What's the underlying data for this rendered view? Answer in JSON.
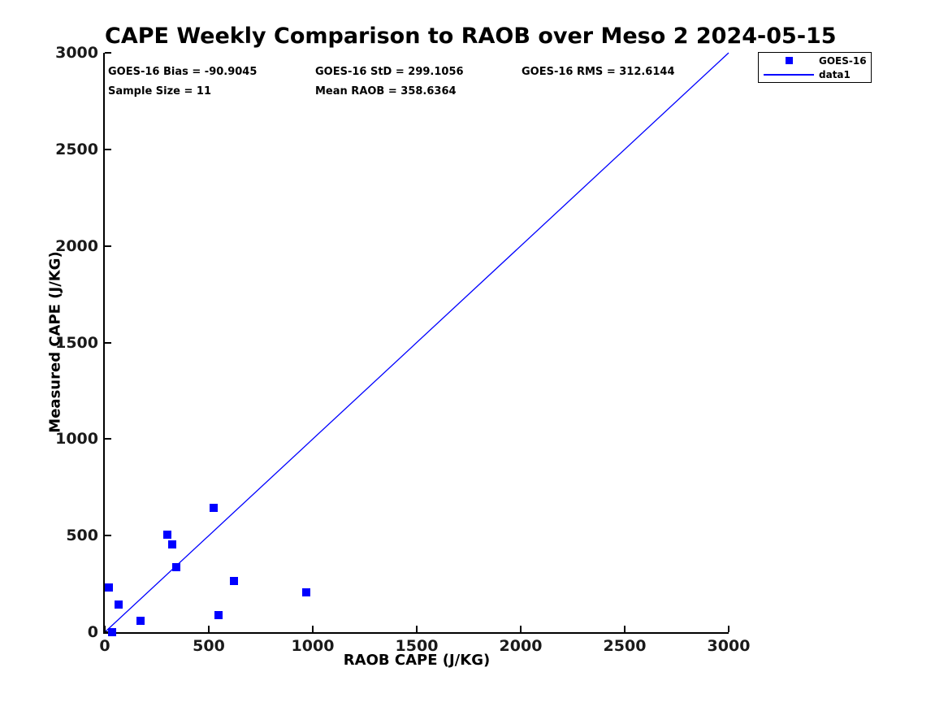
{
  "colors": {
    "data_blue": "#0000FF",
    "axis_black": "#000000",
    "background": "#FFFFFF"
  },
  "legend": {
    "entries": [
      {
        "label": "GOES-16",
        "swatch": "square"
      },
      {
        "label": "data1",
        "swatch": "line"
      }
    ]
  },
  "chart_data": {
    "type": "scatter",
    "title": "CAPE Weekly Comparison to RAOB over Meso 2 2024-05-15",
    "xlabel": "RAOB CAPE (J/KG)",
    "ylabel": "Measured CAPE (J/KG)",
    "xlim": [
      0,
      3000
    ],
    "ylim": [
      0,
      3000
    ],
    "xticks": [
      0,
      500,
      1000,
      1500,
      2000,
      2500,
      3000
    ],
    "yticks": [
      0,
      500,
      1000,
      1500,
      2000,
      2500,
      3000
    ],
    "grid": false,
    "legend_position": "top-right-outside",
    "annotations": [
      "GOES-16 Bias = -90.9045",
      "GOES-16 StD = 299.1056",
      "GOES-16 RMS = 312.6144",
      "Sample Size = 11",
      "Mean RAOB = 358.6364"
    ],
    "series": [
      {
        "name": "GOES-16",
        "type": "scatter",
        "marker": "square",
        "color": "#0000FF",
        "points": [
          [
            20,
            230
          ],
          [
            35,
            0
          ],
          [
            65,
            145
          ],
          [
            170,
            60
          ],
          [
            300,
            505
          ],
          [
            325,
            455
          ],
          [
            345,
            335
          ],
          [
            525,
            645
          ],
          [
            545,
            90
          ],
          [
            620,
            265
          ],
          [
            970,
            205
          ]
        ]
      },
      {
        "name": "data1",
        "type": "line",
        "color": "#0000FF",
        "points": [
          [
            0,
            0
          ],
          [
            3000,
            3000
          ]
        ]
      }
    ]
  }
}
